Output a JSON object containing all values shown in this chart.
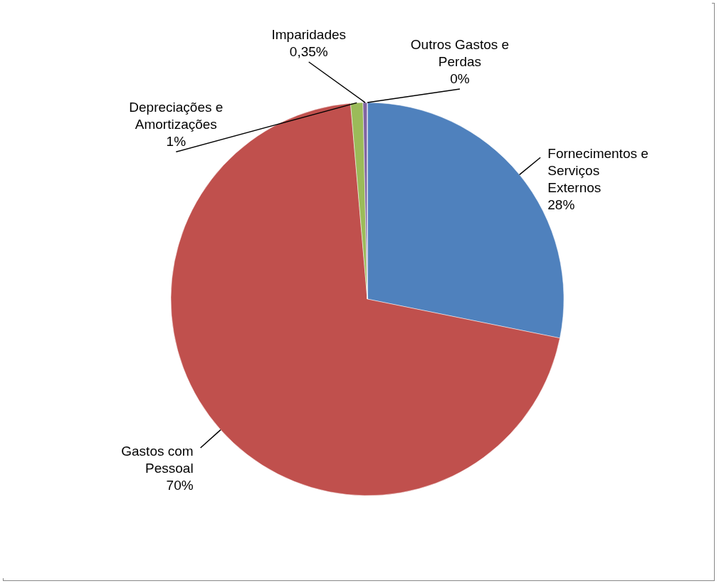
{
  "chart_data": {
    "type": "pie",
    "categories": [
      "Fornecimentos e Serviços Externos",
      "Gastos com Pessoal",
      "Depreciações e Amortizações",
      "Imparidades",
      "Outros Gastos e Perdas"
    ],
    "values": [
      28,
      70,
      1,
      0.35,
      0
    ],
    "colors": [
      "#4f81bd",
      "#c0504d",
      "#9bbb59",
      "#8064a2",
      "#4bacc6"
    ],
    "value_labels": [
      "28%",
      "70%",
      "1%",
      "0,35%",
      "0%"
    ]
  }
}
